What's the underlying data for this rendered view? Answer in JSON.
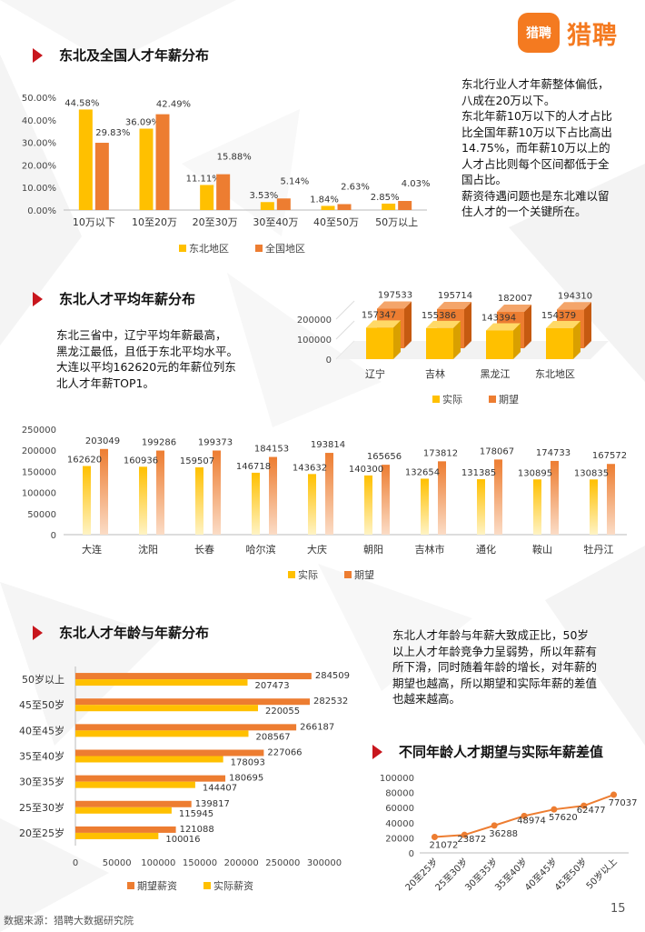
{
  "logo": {
    "icon_text": "猎聘",
    "text": "猎聘"
  },
  "colors": {
    "yellow": "#ffc000",
    "orange": "#ed7d31",
    "red_accent": "#c8161d",
    "brand": "#f47a20"
  },
  "section1": {
    "title": "东北及全国人才年薪分布",
    "paragraph": [
      "东北行业人才年薪整体偏低，",
      "八成在20万以下。",
      "东北年薪10万以下的人才占比",
      "比全国年薪10万以下占比高出",
      "14.75%，而年薪10万以上的",
      "人才占比则每个区间都低于全",
      "国占比。",
      "薪资待遇问题也是东北难以留",
      "住人才的一个关键所在。"
    ]
  },
  "section2": {
    "title": "东北人才平均年薪分布",
    "paragraph": [
      "东北三省中，辽宁平均年薪最高，",
      "黑龙江最低，且低于东北平均水平。",
      "大连以平均162620元的年薪位列东",
      "北人才年薪TOP1。"
    ]
  },
  "section3": {
    "title": "东北人才年龄与年薪分布",
    "paragraph": [
      "东北人才年龄与年薪大致成正比，50岁",
      "以上人才年龄竞争力呈弱势，所以年薪有",
      "所下滑，同时随着年龄的增长，对年薪的",
      "期望也越高，所以期望和实际年薪的差值",
      "也越来越高。"
    ]
  },
  "section4": {
    "title": "不同年龄人才期望与实际年薪差值"
  },
  "footer": {
    "source": "数据来源：猎聘大数据研究院",
    "page": "15"
  },
  "chart_data": [
    {
      "type": "bar",
      "categories": [
        "10万以下",
        "10至20万",
        "20至30万",
        "30至40万",
        "40至50万",
        "50万以上"
      ],
      "series": [
        {
          "name": "东北地区",
          "values": [
            44.58,
            36.09,
            11.11,
            3.53,
            1.84,
            2.85
          ],
          "labels": [
            "44.58%",
            "36.09%",
            "11.11%",
            "3.53%",
            "1.84%",
            "2.85%"
          ]
        },
        {
          "name": "全国地区",
          "values": [
            29.83,
            42.49,
            15.88,
            5.14,
            2.63,
            4.03
          ],
          "labels": [
            "29.83%",
            "42.49%",
            "15.88%",
            "5.14%",
            "2.63%",
            "4.03%"
          ]
        }
      ],
      "yticks": [
        "0.00%",
        "10.00%",
        "20.00%",
        "30.00%",
        "40.00%",
        "50.00%"
      ],
      "ylim": [
        0,
        50
      ],
      "legend": "bottom"
    },
    {
      "type": "bar",
      "categories": [
        "辽宁",
        "吉林",
        "黑龙江",
        "东北地区"
      ],
      "series": [
        {
          "name": "实际",
          "values": [
            157347,
            155386,
            143394,
            154379
          ]
        },
        {
          "name": "期望",
          "values": [
            197533,
            195714,
            182007,
            194310
          ]
        }
      ],
      "yticks": [
        "0",
        "100000",
        "200000"
      ],
      "ylim": [
        0,
        200000
      ],
      "legend": "bottom"
    },
    {
      "type": "bar",
      "categories": [
        "大连",
        "沈阳",
        "长春",
        "哈尔滨",
        "大庆",
        "朝阳",
        "吉林市",
        "通化",
        "鞍山",
        "牡丹江"
      ],
      "series": [
        {
          "name": "实际",
          "values": [
            162620,
            160936,
            159507,
            146718,
            143632,
            140300,
            132654,
            131385,
            130895,
            130835
          ]
        },
        {
          "name": "期望",
          "values": [
            203049,
            199286,
            199373,
            184153,
            193814,
            165656,
            173812,
            178067,
            174733,
            167572
          ]
        }
      ],
      "yticks": [
        "0",
        "50000",
        "100000",
        "150000",
        "200000",
        "250000"
      ],
      "ylim": [
        0,
        250000
      ],
      "legend": "bottom"
    },
    {
      "type": "bar",
      "orientation": "horizontal",
      "categories": [
        "50岁以上",
        "45至50岁",
        "40至45岁",
        "35至40岁",
        "30至35岁",
        "25至30岁",
        "20至25岁"
      ],
      "series": [
        {
          "name": "期望薪资",
          "values": [
            284509,
            282532,
            266187,
            227066,
            180695,
            139817,
            121088
          ]
        },
        {
          "name": "实际薪资",
          "values": [
            207473,
            220055,
            208567,
            178093,
            144407,
            115945,
            100016
          ]
        }
      ],
      "xticks": [
        "0",
        "50000",
        "100000",
        "150000",
        "200000",
        "250000",
        "300000"
      ],
      "xlim": [
        0,
        300000
      ],
      "legend": "bottom"
    },
    {
      "type": "line",
      "categories": [
        "20至25岁",
        "25至30岁",
        "30至35岁",
        "35至40岁",
        "40至45岁",
        "45至50岁",
        "50岁以上"
      ],
      "values": [
        21072,
        23872,
        36288,
        48974,
        57620,
        62477,
        77037
      ],
      "yticks": [
        "0",
        "20000",
        "40000",
        "60000",
        "80000",
        "100000"
      ],
      "ylim": [
        0,
        100000
      ]
    }
  ]
}
